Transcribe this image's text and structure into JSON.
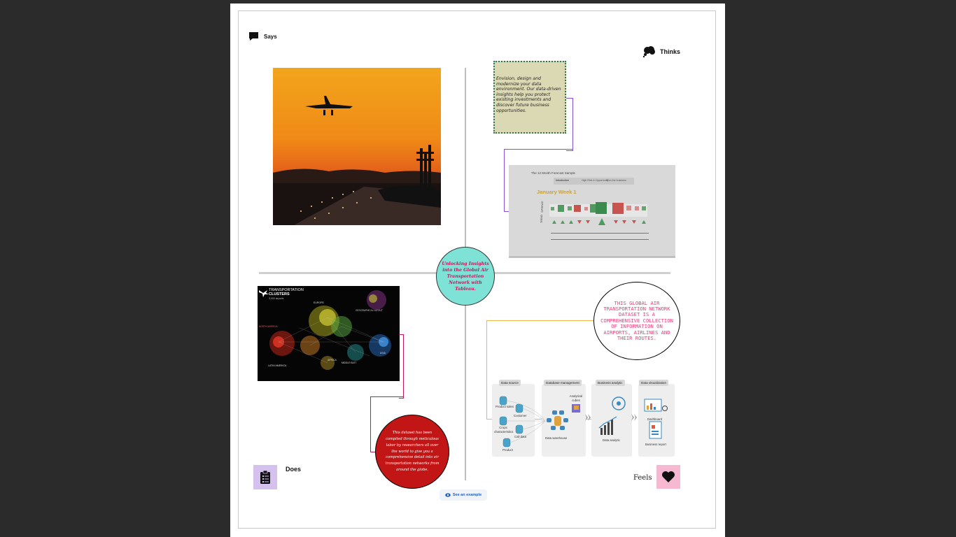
{
  "labels": {
    "says": "Says",
    "thinks": "Thinks",
    "does": "Does",
    "feels": "Feels"
  },
  "center_title": "Unlocking Insights into the Global Air Transportation Network with Tableau.",
  "sticky_note": "Envision, design and modernize your data environment. Our data-driven insights help you protect existing investments and discover future business opportunities.",
  "feels_circle": "THIS GLOBAL AIR TRANSPORTATION NETWORK DATASET IS A COMPREHENSIVE COLLECTION OF INFORMATION ON AIRPORTS, AIRLINES AND THEIR ROUTES.",
  "does_circle": "This dataset has been compiled through meticulous labor by researchers all over the world to give you a comprehensive detail into air transportation networks from around the globe.",
  "see_example": "See an example",
  "dashboard": {
    "title": "The 12 Month Forecast Sample",
    "tabs": [
      "Introduction",
      "High Risk & Opportunity",
      "Run the business"
    ],
    "heading": "January Week 1",
    "row_label_spread": "SPREAD",
    "row_label_trend": "TREND"
  },
  "map_image": {
    "title_line1": "TRANSPORTATION",
    "title_line2": "CLUSTERS",
    "sub": "3,000 airports",
    "inset": "GEOGRAPHICAL LAYOUT",
    "regions": [
      "EUROPE",
      "AFRICA",
      "MIDDLE EAST",
      "LATIN AMERICA",
      "NORTH AMERICA",
      "ASIA"
    ]
  },
  "flow": {
    "stages": [
      "Data source",
      "Database management",
      "Business analytic",
      "Data visualization"
    ],
    "source_items": [
      "Product sales",
      "Customer",
      "Crops characteristics",
      "Call data",
      "Product"
    ],
    "analytical_cubes": "Analytical cubes",
    "data_warehouse": "Data warehouse",
    "data_analytic": "Data analytic",
    "dashboard": "Dashboard",
    "business_report": "Business report"
  },
  "colors": {
    "accent_purple": "#8a4fd8",
    "accent_pink": "#c2185b",
    "accent_orange": "#f0b64a",
    "teal": "#7ee3d6",
    "red": "#c21515",
    "sticky": "#dbd9b4"
  }
}
